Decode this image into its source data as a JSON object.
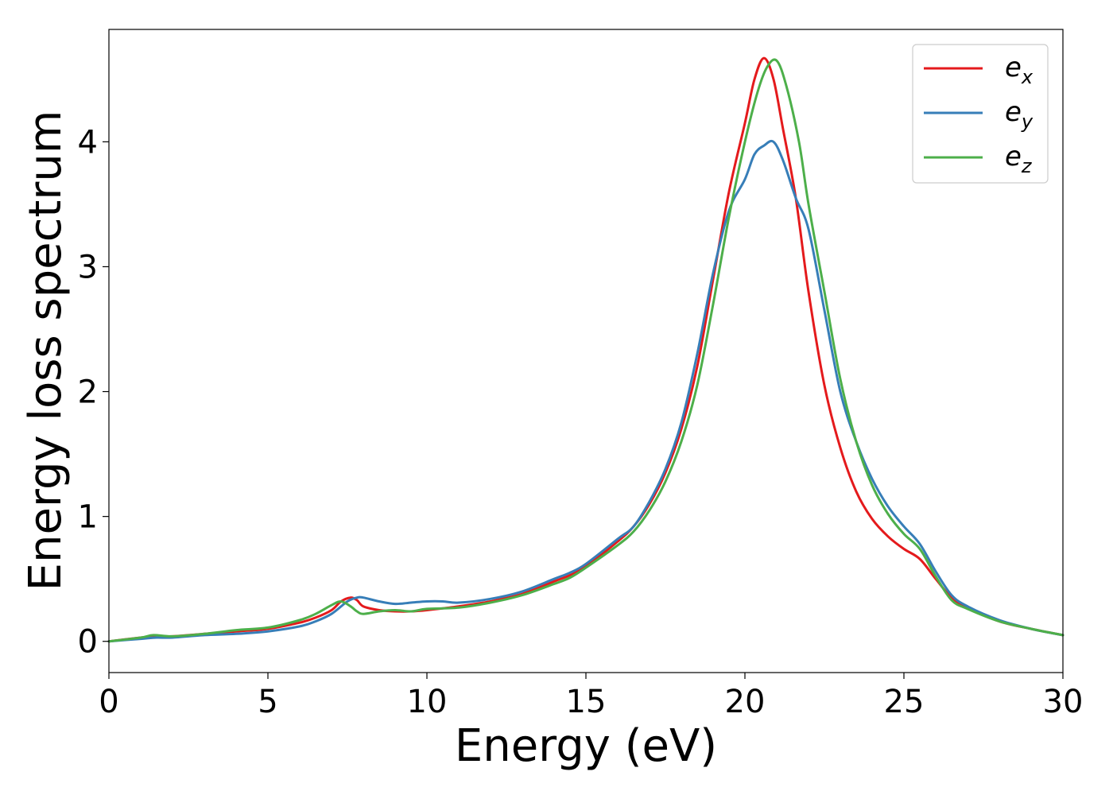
{
  "chart_data": {
    "type": "line",
    "xlabel": "Energy (eV)",
    "ylabel": "Energy loss spectrum",
    "xlim": [
      0,
      30
    ],
    "ylim": [
      -0.25,
      4.9
    ],
    "xticks": [
      0,
      5,
      10,
      15,
      20,
      25,
      30
    ],
    "yticks": [
      0,
      1,
      2,
      3,
      4
    ],
    "xtick_labels": [
      "0",
      "5",
      "10",
      "15",
      "20",
      "25",
      "30"
    ],
    "ytick_labels": [
      "0",
      "1",
      "2",
      "3",
      "4"
    ],
    "grid": false,
    "legend_position": "top-right",
    "series": [
      {
        "name": "e",
        "subscript": "x",
        "color": "#e41a1c",
        "x": [
          0,
          1,
          1.5,
          2,
          3,
          4,
          5,
          6,
          6.5,
          7,
          7.3,
          7.6,
          7.8,
          8,
          8.5,
          9,
          9.5,
          10,
          11,
          12,
          13,
          14,
          14.5,
          15,
          16,
          16.5,
          17,
          17.5,
          18,
          18.5,
          19,
          19.5,
          20,
          20.3,
          20.6,
          20.9,
          21.2,
          21.6,
          22,
          22.5,
          23,
          23.5,
          24,
          24.5,
          25,
          25.5,
          26,
          26.5,
          27,
          28,
          29,
          30
        ],
        "y": [
          0,
          0.03,
          0.04,
          0.04,
          0.06,
          0.08,
          0.1,
          0.15,
          0.19,
          0.25,
          0.32,
          0.35,
          0.33,
          0.28,
          0.25,
          0.24,
          0.24,
          0.25,
          0.28,
          0.32,
          0.38,
          0.48,
          0.53,
          0.6,
          0.8,
          0.92,
          1.1,
          1.35,
          1.7,
          2.2,
          2.9,
          3.6,
          4.15,
          4.5,
          4.67,
          4.5,
          4.1,
          3.55,
          2.8,
          2.05,
          1.55,
          1.2,
          0.98,
          0.84,
          0.74,
          0.66,
          0.5,
          0.35,
          0.27,
          0.16,
          0.1,
          0.05
        ]
      },
      {
        "name": "e",
        "subscript": "y",
        "color": "#377eb8",
        "x": [
          0,
          1,
          1.5,
          2,
          3,
          4,
          5,
          6,
          6.5,
          7,
          7.5,
          7.8,
          8,
          8.5,
          9,
          9.5,
          10,
          10.5,
          11,
          12,
          13,
          14,
          14.5,
          15,
          16,
          16.5,
          17,
          17.5,
          18,
          18.5,
          19,
          19.5,
          20,
          20.3,
          20.6,
          20.9,
          21.2,
          21.6,
          22,
          22.5,
          23,
          23.5,
          24,
          24.5,
          25,
          25.5,
          26,
          26.5,
          27,
          28,
          29,
          30
        ],
        "y": [
          0,
          0.02,
          0.03,
          0.03,
          0.05,
          0.06,
          0.08,
          0.12,
          0.16,
          0.22,
          0.32,
          0.35,
          0.35,
          0.32,
          0.3,
          0.31,
          0.32,
          0.32,
          0.31,
          0.34,
          0.4,
          0.5,
          0.55,
          0.62,
          0.82,
          0.92,
          1.12,
          1.38,
          1.75,
          2.3,
          2.95,
          3.45,
          3.7,
          3.9,
          3.97,
          4.0,
          3.85,
          3.55,
          3.3,
          2.65,
          2.0,
          1.6,
          1.3,
          1.08,
          0.92,
          0.78,
          0.56,
          0.37,
          0.28,
          0.17,
          0.1,
          0.05
        ]
      },
      {
        "name": "e",
        "subscript": "z",
        "color": "#4daf4a",
        "x": [
          0,
          1,
          1.4,
          2,
          3,
          4,
          5,
          6,
          6.5,
          7,
          7.3,
          7.6,
          7.8,
          8,
          8.5,
          9,
          9.5,
          10,
          11,
          12,
          13,
          14,
          14.5,
          15,
          16,
          16.5,
          17,
          17.5,
          18,
          18.5,
          19,
          19.5,
          20,
          20.4,
          20.7,
          21,
          21.3,
          21.7,
          22,
          22.5,
          23,
          23.5,
          24,
          24.5,
          25,
          25.5,
          26,
          26.5,
          27,
          28,
          29,
          30
        ],
        "y": [
          0,
          0.03,
          0.05,
          0.04,
          0.06,
          0.09,
          0.11,
          0.17,
          0.22,
          0.29,
          0.32,
          0.28,
          0.24,
          0.22,
          0.24,
          0.25,
          0.24,
          0.26,
          0.27,
          0.31,
          0.37,
          0.46,
          0.51,
          0.59,
          0.77,
          0.88,
          1.05,
          1.28,
          1.6,
          2.05,
          2.7,
          3.4,
          4.0,
          4.4,
          4.6,
          4.65,
          4.45,
          4.0,
          3.5,
          2.8,
          2.1,
          1.6,
          1.25,
          1.02,
          0.86,
          0.74,
          0.52,
          0.33,
          0.26,
          0.16,
          0.1,
          0.05
        ]
      }
    ]
  }
}
